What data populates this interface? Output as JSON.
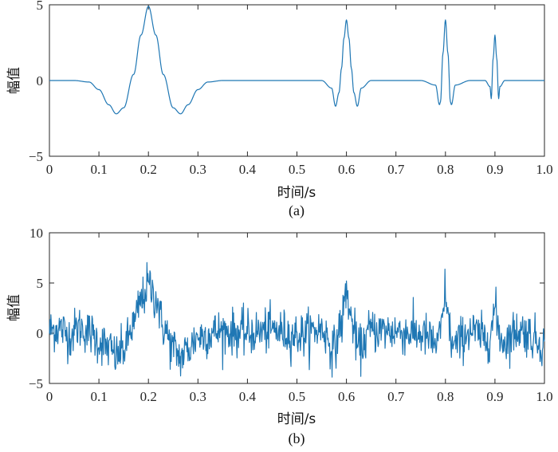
{
  "chart_data": [
    {
      "type": "line",
      "panel_label": "(a)",
      "xlabel": "时间/s",
      "ylabel": "幅值",
      "xlim": [
        0,
        1.0
      ],
      "ylim": [
        -5,
        5
      ],
      "xticks": [
        "0",
        "0.1",
        "0.2",
        "0.3",
        "0.4",
        "0.5",
        "0.6",
        "0.7",
        "0.8",
        "0.9",
        "1.0"
      ],
      "yticks": [
        "-5",
        "0",
        "5"
      ],
      "grid": false,
      "color": "#1f77b4",
      "series": [
        {
          "x": [
            0,
            0.05,
            0.08,
            0.1,
            0.12,
            0.135,
            0.15,
            0.17,
            0.185,
            0.2,
            0.215,
            0.23,
            0.25,
            0.265,
            0.28,
            0.3,
            0.32,
            0.35,
            0.4,
            0.5,
            0.55,
            0.57,
            0.578,
            0.585,
            0.59,
            0.595,
            0.6,
            0.605,
            0.61,
            0.615,
            0.622,
            0.63,
            0.65,
            0.7,
            0.75,
            0.78,
            0.788,
            0.79,
            0.795,
            0.8,
            0.805,
            0.81,
            0.812,
            0.82,
            0.85,
            0.88,
            0.89,
            0.8925,
            0.8965,
            0.9,
            0.9035,
            0.9075,
            0.91,
            0.92,
            0.95,
            1.0
          ],
          "y": [
            0,
            0,
            -0.1,
            -0.6,
            -1.6,
            -2.2,
            -1.8,
            0.4,
            3.0,
            4.9,
            3.0,
            0.4,
            -1.8,
            -2.2,
            -1.6,
            -0.6,
            -0.1,
            0,
            0,
            0,
            0,
            -0.5,
            -1.7,
            -0.8,
            0.8,
            2.8,
            4.0,
            2.8,
            0.8,
            -0.8,
            -1.7,
            -0.5,
            0,
            0,
            0,
            -0.3,
            -1.6,
            -1.4,
            1.8,
            4.0,
            1.8,
            -1.4,
            -1.6,
            -0.3,
            0,
            0,
            -0.4,
            -1.2,
            1.5,
            3.0,
            1.5,
            -1.2,
            -0.4,
            0,
            0,
            0
          ]
        }
      ]
    },
    {
      "type": "line",
      "panel_label": "(b)",
      "xlabel": "时间/s",
      "ylabel": "幅值",
      "xlim": [
        0,
        1.0
      ],
      "ylim": [
        -5,
        10
      ],
      "xticks": [
        "0",
        "0.1",
        "0.2",
        "0.3",
        "0.4",
        "0.5",
        "0.6",
        "0.7",
        "0.8",
        "0.9",
        "1.0"
      ],
      "yticks": [
        "-5",
        "0",
        "5",
        "10"
      ],
      "grid": false,
      "color": "#1f77b4",
      "series": [
        {
          "x": [
            0,
            0.02,
            0.04,
            0.06,
            0.08,
            0.1,
            0.12,
            0.135,
            0.15,
            0.17,
            0.185,
            0.2,
            0.215,
            0.23,
            0.25,
            0.265,
            0.28,
            0.3,
            0.35,
            0.4,
            0.45,
            0.5,
            0.55,
            0.575,
            0.59,
            0.6,
            0.61,
            0.625,
            0.65,
            0.7,
            0.75,
            0.785,
            0.795,
            0.8,
            0.805,
            0.815,
            0.85,
            0.885,
            0.895,
            0.9,
            0.905,
            0.915,
            0.95,
            1.0
          ],
          "y": [
            0.3,
            0.5,
            -0.2,
            0.6,
            0.1,
            -0.8,
            -1.5,
            -2.3,
            -1.6,
            0.8,
            3.2,
            4.8,
            3.5,
            0.6,
            -1.5,
            -2.4,
            -1.6,
            -0.3,
            0.2,
            0.0,
            0.3,
            -0.2,
            0.4,
            -1.6,
            1.0,
            4.2,
            1.2,
            -1.6,
            0.3,
            0.2,
            -0.1,
            -1.1,
            1.5,
            4.6,
            1.3,
            -1.3,
            0.2,
            -0.6,
            0.9,
            2.6,
            0.7,
            -0.8,
            0.3,
            -1.0
          ],
          "noise_std": 1.1
        }
      ]
    }
  ]
}
